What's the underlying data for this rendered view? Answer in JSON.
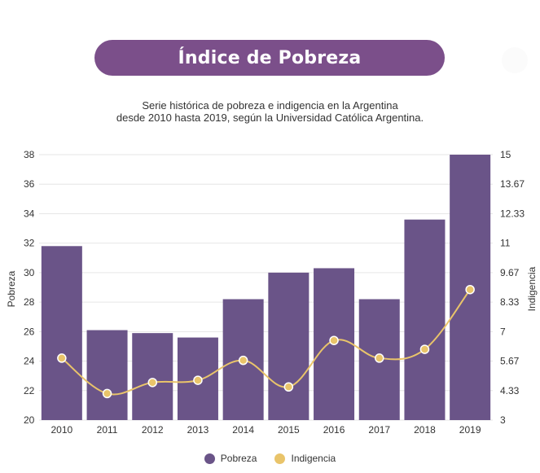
{
  "title": "Índice de Pobreza",
  "subtitle_line1": "Serie histórica de pobreza e indigencia en la Argentina",
  "subtitle_line2": "desde 2010 hasta 2019, según la Universidad Católica Argentina.",
  "colors": {
    "title_bg": "#7b4f8a",
    "bar": "#6a5488",
    "line": "#e9c46a",
    "grid": "#e6e6e6"
  },
  "chart_data": {
    "type": "bar",
    "categories": [
      "2010",
      "2011",
      "2012",
      "2013",
      "2014",
      "2015",
      "2016",
      "2017",
      "2018",
      "2019"
    ],
    "series": [
      {
        "name": "Pobreza",
        "type": "bar",
        "axis": "left",
        "values": [
          31.8,
          26.1,
          25.9,
          25.6,
          28.2,
          30.0,
          30.3,
          28.2,
          33.6,
          38.0
        ]
      },
      {
        "name": "Indigencia",
        "type": "line",
        "axis": "right",
        "values": [
          5.8,
          4.2,
          4.7,
          4.8,
          5.7,
          4.5,
          6.6,
          5.8,
          6.2,
          8.9
        ]
      }
    ],
    "y_left": {
      "label": "Pobreza",
      "range": [
        20,
        38
      ],
      "ticks": [
        "20",
        "22",
        "24",
        "26",
        "28",
        "30",
        "32",
        "34",
        "36",
        "38"
      ]
    },
    "y_right": {
      "label": "Indigencia",
      "range": [
        3,
        15
      ],
      "ticks": [
        "3",
        "4.33",
        "5.67",
        "7",
        "8.33",
        "9.67",
        "11",
        "12.33",
        "13.67",
        "15"
      ]
    },
    "grid": true,
    "legend_position": "bottom"
  }
}
